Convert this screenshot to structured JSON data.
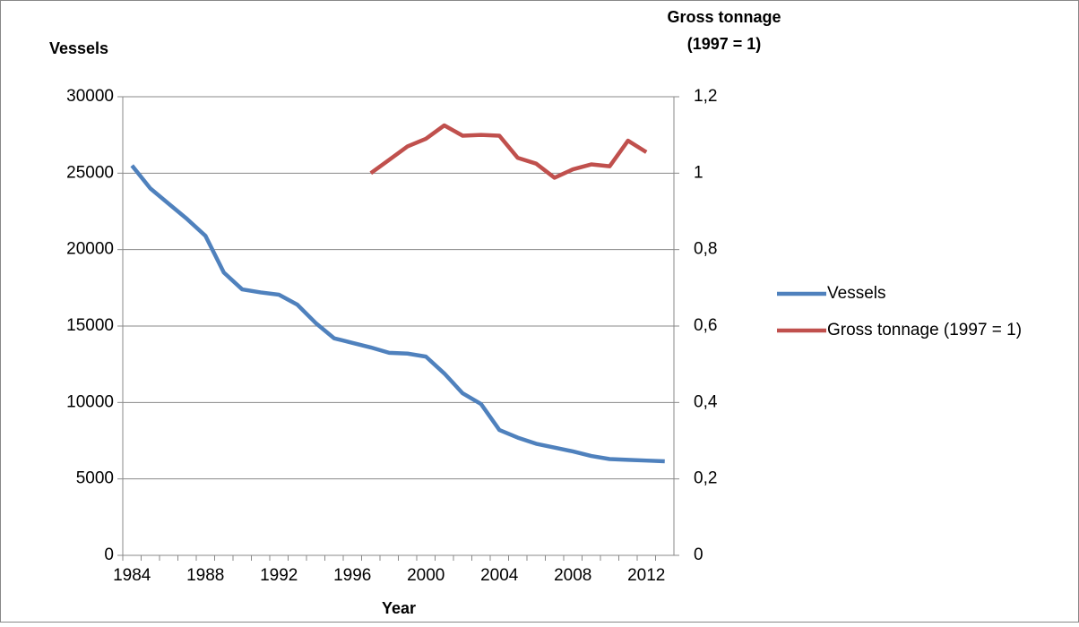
{
  "chart_data": {
    "type": "line",
    "ylabel": "Vessels",
    "y2label": [
      "Gross tonnage",
      "(1997 = 1)"
    ],
    "xlabel": "Year",
    "x": [
      1984,
      1985,
      1986,
      1987,
      1988,
      1989,
      1990,
      1991,
      1992,
      1993,
      1994,
      1995,
      1996,
      1997,
      1998,
      1999,
      2000,
      2001,
      2002,
      2003,
      2004,
      2005,
      2006,
      2007,
      2008,
      2009,
      2010,
      2011,
      2012,
      2013
    ],
    "xlim": [
      1983.5,
      2013.5
    ],
    "xticks": [
      1984,
      1988,
      1992,
      1996,
      2000,
      2004,
      2008,
      2012
    ],
    "ylim": [
      0,
      30000
    ],
    "yticks": [
      0,
      5000,
      10000,
      15000,
      20000,
      25000,
      30000
    ],
    "y2lim": [
      0,
      1.2
    ],
    "y2ticks": [
      0,
      {
        "value": 0.2,
        "label": "0,2"
      },
      {
        "value": 0.4,
        "label": "0,4"
      },
      {
        "value": 0.6,
        "label": "0,6"
      },
      {
        "value": 0.8,
        "label": "0,8"
      },
      1,
      {
        "value": 1.2,
        "label": "1,2"
      }
    ],
    "grid": true,
    "legend": "right",
    "series": [
      {
        "name": "Vessels",
        "color": "#4f81bd",
        "values": [
          25500,
          24000,
          23000,
          22000,
          20900,
          18500,
          17400,
          17200,
          17050,
          16400,
          15200,
          14200,
          13900,
          13600,
          13250,
          13200,
          13000,
          11900,
          10600,
          9900,
          8200,
          7700,
          7300,
          7050,
          6800,
          6500,
          6300,
          6250,
          6200,
          6150
        ]
      },
      {
        "name": "Gross tonnage (1997 = 1)",
        "color": "#c0504d",
        "axis": "y2",
        "values": [
          null,
          null,
          null,
          null,
          null,
          null,
          null,
          null,
          null,
          null,
          null,
          null,
          null,
          1.0,
          1.035,
          1.07,
          1.09,
          1.125,
          1.098,
          1.1,
          1.098,
          1.04,
          1.025,
          0.988,
          1.01,
          1.023,
          1.018,
          1.085,
          1.055,
          null
        ]
      }
    ]
  }
}
